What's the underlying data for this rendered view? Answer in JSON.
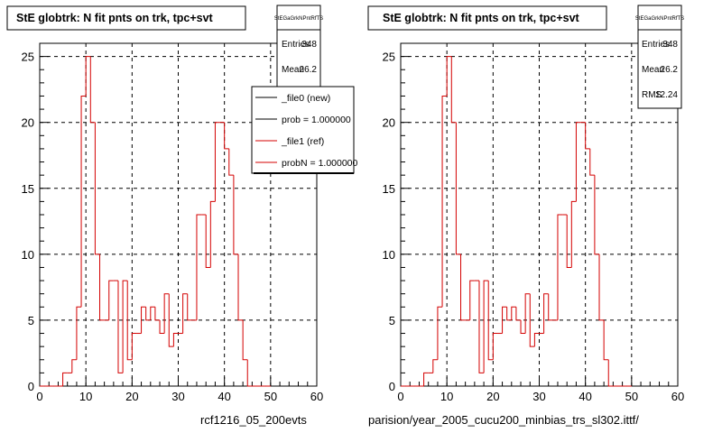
{
  "colors": {
    "background": "#ffffff",
    "hist": "#d40000",
    "new": "#000000",
    "grid": "#000000"
  },
  "left_pad": {
    "title": "StE globtrk: N fit pnts on trk, tpc+svt",
    "stats": {
      "name": "StEGaGrkNPntRfTS",
      "entries_label": "Entries",
      "entries_value": "348",
      "mean_label": "Mean",
      "mean_value": "26.2"
    },
    "legend": [
      {
        "label": "_file0 (new)",
        "color": "#000000"
      },
      {
        "label": "prob = 1.000000",
        "color": "#000000"
      },
      {
        "label": "_file1 (ref)",
        "color": "#d40000"
      },
      {
        "label": "probN = 1.000000",
        "color": "#d40000"
      }
    ],
    "footer": "rcf1216_05_200evts"
  },
  "right_pad": {
    "title": "StE globtrk: N fit pnts on trk, tpc+svt",
    "stats": {
      "name": "StEGaGrkNPntRfTS",
      "entries_label": "Entries",
      "entries_value": "348",
      "mean_label": "Mean",
      "mean_value": "26.2",
      "rms_label": "RMS",
      "rms_value": "12.24"
    },
    "footer": "parision/year_2005_cucu200_minbias_trs_sl302.ittf/"
  },
  "chart_data": [
    {
      "type": "bar",
      "title": "StE globtrk: N fit pnts on trk, tpc+svt",
      "xlabel": "",
      "ylabel": "",
      "xlim": [
        0,
        60
      ],
      "ylim": [
        0,
        26
      ],
      "xticks": [
        0,
        10,
        20,
        30,
        40,
        50,
        60
      ],
      "yticks": [
        0,
        5,
        10,
        15,
        20,
        25
      ],
      "grid": true,
      "legend_position": "top-right",
      "bin_edges": [
        0,
        1,
        2,
        3,
        4,
        5,
        6,
        7,
        8,
        9,
        10,
        11,
        12,
        13,
        14,
        15,
        16,
        17,
        18,
        19,
        20,
        21,
        22,
        23,
        24,
        25,
        26,
        27,
        28,
        29,
        30,
        31,
        32,
        33,
        34,
        35,
        36,
        37,
        38,
        39,
        40,
        41,
        42,
        43,
        44,
        45,
        46,
        47,
        48,
        49,
        50
      ],
      "series": [
        {
          "name": "_file1 (ref)",
          "color": "#d40000",
          "values": [
            0,
            0,
            0,
            0,
            0,
            1,
            1,
            2,
            6,
            22,
            25,
            20,
            10,
            5,
            5,
            8,
            8,
            1,
            8,
            2,
            4,
            4,
            6,
            5,
            6,
            5,
            4,
            7,
            3,
            4,
            4,
            7,
            5,
            5,
            13,
            13,
            9,
            14,
            20,
            20,
            18,
            16,
            10,
            5,
            2,
            0,
            0,
            0,
            0,
            0
          ]
        }
      ]
    },
    {
      "type": "bar",
      "title": "StE globtrk: N fit pnts on trk, tpc+svt",
      "xlabel": "",
      "ylabel": "",
      "xlim": [
        0,
        60
      ],
      "ylim": [
        0,
        26
      ],
      "xticks": [
        0,
        10,
        20,
        30,
        40,
        50,
        60
      ],
      "yticks": [
        0,
        5,
        10,
        15,
        20,
        25
      ],
      "grid": true,
      "bin_edges": [
        0,
        1,
        2,
        3,
        4,
        5,
        6,
        7,
        8,
        9,
        10,
        11,
        12,
        13,
        14,
        15,
        16,
        17,
        18,
        19,
        20,
        21,
        22,
        23,
        24,
        25,
        26,
        27,
        28,
        29,
        30,
        31,
        32,
        33,
        34,
        35,
        36,
        37,
        38,
        39,
        40,
        41,
        42,
        43,
        44,
        45,
        46,
        47,
        48,
        49,
        50
      ],
      "series": [
        {
          "name": "",
          "color": "#d40000",
          "values": [
            0,
            0,
            0,
            0,
            0,
            1,
            1,
            2,
            6,
            22,
            25,
            20,
            10,
            5,
            5,
            8,
            8,
            1,
            8,
            2,
            4,
            4,
            6,
            5,
            6,
            5,
            4,
            7,
            3,
            4,
            4,
            7,
            5,
            5,
            13,
            13,
            9,
            14,
            20,
            20,
            18,
            16,
            10,
            5,
            2,
            0,
            0,
            0,
            0,
            0
          ]
        }
      ]
    }
  ]
}
